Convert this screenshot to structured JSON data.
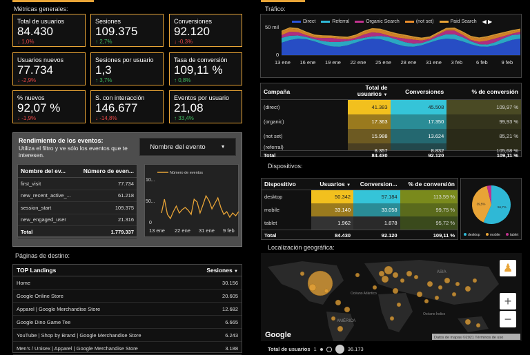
{
  "colors": {
    "accent": "#e8a437",
    "direct": "#2a54d8",
    "referral": "#2fb8d6",
    "organic": "#c0328e",
    "notset": "#e88c2a",
    "paid": "#e8a437",
    "down": "#e04545",
    "up": "#3fb85f"
  },
  "metrics": {
    "title": "Métricas generales:",
    "cards": [
      {
        "label": "Total de usuarios",
        "value": "84.430",
        "delta": "1,0%",
        "dir": "down"
      },
      {
        "label": "Sesiones",
        "value": "109.375",
        "delta": "2,7%",
        "dir": "up"
      },
      {
        "label": "Conversiones",
        "value": "92.120",
        "delta": "-0,3%",
        "dir": "down"
      },
      {
        "label": "Usuarios nuevos",
        "value": "77.734",
        "delta": "-2,9%",
        "dir": "down"
      },
      {
        "label": "Sesiones por usuario",
        "value": "1,3",
        "delta": "3,7%",
        "dir": "up"
      },
      {
        "label": "Tasa de conversión",
        "value": "109,11 %",
        "delta": "0,8%",
        "dir": "up"
      },
      {
        "label": "% nuevos",
        "value": "92,07 %",
        "delta": "-1,9%",
        "dir": "down"
      },
      {
        "label": "S. con interacción",
        "value": "146.677",
        "delta": "-14,8%",
        "dir": "down"
      },
      {
        "label": "Eventos por usuario",
        "value": "21,08",
        "delta": "33,4%",
        "dir": "up"
      }
    ]
  },
  "events": {
    "title": "Rendimiento de los eventos:",
    "subtitle": "Utiliza el filtro y ve sólo los eventos que te interesen.",
    "filter_label": "Nombre del evento",
    "col_name": "Nombre del ev...",
    "col_count": "Número de even...",
    "rows": [
      {
        "name": "first_visit",
        "count": "77.734"
      },
      {
        "name": "new_recent_active_...",
        "count": "61.218"
      },
      {
        "name": "session_start",
        "count": "109.375"
      },
      {
        "name": "new_engaged_user",
        "count": "21.316"
      }
    ],
    "total_label": "Total",
    "total": "1.779.337",
    "chart": {
      "legend": "Número de eventos",
      "yticks": [
        "10...",
        "50...",
        "0"
      ],
      "xticks": [
        "13 ene",
        "22 ene",
        "31 ene",
        "9 feb"
      ]
    }
  },
  "landing": {
    "title": "Páginas de destino:",
    "col_page": "TOP Landings",
    "col_sessions": "Sesiones",
    "rows": [
      {
        "page": "Home",
        "sessions": "30.156"
      },
      {
        "page": "Google Online Store",
        "sessions": "20.605"
      },
      {
        "page": "Apparel | Google Merchandise Store",
        "sessions": "12.682"
      },
      {
        "page": "Google Dino Game Tee",
        "sessions": "6.665"
      },
      {
        "page": "YouTube | Shop by Brand | Google Merchandise Store",
        "sessions": "6.243"
      },
      {
        "page": "Men's / Unisex | Apparel | Google Merchandise Store",
        "sessions": "3.188"
      }
    ]
  },
  "traffic": {
    "title": "Tráfico:",
    "legend": [
      "Direct",
      "Referral",
      "Organic Search",
      "(not set)",
      "Paid Search"
    ],
    "yticks": [
      "50 mil",
      "0"
    ],
    "xticks": [
      "13 ene",
      "16 ene",
      "19 ene",
      "22 ene",
      "25 ene",
      "28 ene",
      "31 ene",
      "3 feb",
      "6 feb",
      "9 feb"
    ]
  },
  "campaign": {
    "col_campaign": "Campaña",
    "col_users": "Total de usuarios",
    "col_conv": "Conversiones",
    "col_rate": "% de conversión",
    "rows": [
      {
        "name": "(direct)",
        "users": "41.383",
        "conv": "45.508",
        "rate": "109,97 %"
      },
      {
        "name": "(organic)",
        "users": "17.363",
        "conv": "17.350",
        "rate": "99,93 %"
      },
      {
        "name": "(not set)",
        "users": "15.988",
        "conv": "13.624",
        "rate": "85,21 %"
      },
      {
        "name": "(referral)",
        "users": "8.357",
        "conv": "8.832",
        "rate": "105,68 %"
      }
    ],
    "total_label": "Total",
    "total_users": "84.430",
    "total_conv": "92.120",
    "total_rate": "109,11 %"
  },
  "devices": {
    "title": "Dispositivos:",
    "col_device": "Dispositivo",
    "col_users": "Usuarios",
    "col_conv": "Conversion...",
    "col_rate": "% de conversión",
    "rows": [
      {
        "name": "desktop",
        "users": "50.342",
        "conv": "57.184",
        "rate": "113,59 %"
      },
      {
        "name": "mobile",
        "users": "33.140",
        "conv": "33.058",
        "rate": "99,75 %"
      },
      {
        "name": "tablet",
        "users": "1.962",
        "conv": "1.878",
        "rate": "95,72 %"
      }
    ],
    "total_label": "Total",
    "total_users": "84.430",
    "total_conv": "92.120",
    "total_rate": "109,11 %",
    "pie": {
      "slices": [
        {
          "name": "desktop",
          "pct": 56.7,
          "label": "56,7%"
        },
        {
          "name": "mobile",
          "pct": 39.5,
          "label": "39,5%"
        },
        {
          "name": "tablet",
          "pct": 3.8,
          "label": ""
        }
      ],
      "legend": [
        "desktop",
        "mobile",
        "tablet"
      ]
    }
  },
  "geo": {
    "title": "Localización geográfica:",
    "labels": [
      "ASIA",
      "AMÉRICA",
      "Océano Atlántico",
      "Océano Índico"
    ],
    "attribution": "Datos de mapas ©2021   Términos de uso",
    "google": "Google",
    "legend_label": "Total de usuarios",
    "legend_min": "1",
    "legend_max": "36.173"
  }
}
